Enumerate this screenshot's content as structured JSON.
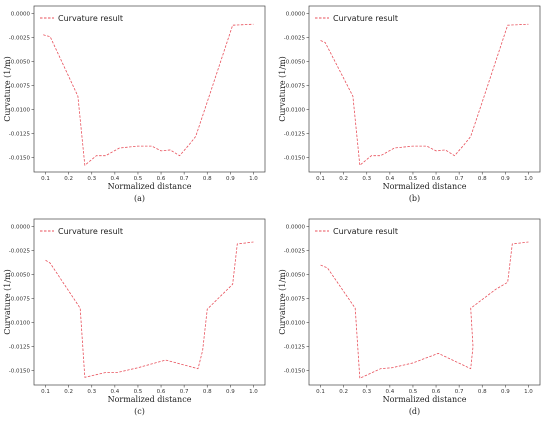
{
  "chart_data": [
    {
      "type": "line",
      "panel": "a",
      "caption": "(a)",
      "xlabel": "Normalized distance",
      "ylabel": "Curvature (1/m)",
      "xlim": [
        0.05,
        1.05
      ],
      "ylim": [
        -0.0165,
        0.0008
      ],
      "xticks": [
        "0.1",
        "0.2",
        "0.3",
        "0.4",
        "0.5",
        "0.6",
        "0.7",
        "0.8",
        "0.9",
        "1.0"
      ],
      "yticks": [
        "0.0000",
        "-0.0025",
        "-0.0050",
        "-0.0075",
        "-0.0100",
        "-0.0125",
        "-0.0150"
      ],
      "legend": "top-left",
      "series": [
        {
          "name": "Curvature result",
          "color": "#e8505b",
          "x": [
            0.09,
            0.12,
            0.24,
            0.27,
            0.32,
            0.36,
            0.42,
            0.5,
            0.56,
            0.6,
            0.64,
            0.68,
            0.72,
            0.75,
            0.8,
            0.91,
            1.0
          ],
          "y": [
            -0.0022,
            -0.0024,
            -0.0086,
            -0.0158,
            -0.0148,
            -0.0148,
            -0.014,
            -0.0138,
            -0.0138,
            -0.0143,
            -0.0142,
            -0.0148,
            -0.0137,
            -0.0128,
            -0.0092,
            -0.0012,
            -0.0011
          ]
        }
      ]
    },
    {
      "type": "line",
      "panel": "b",
      "caption": "(b)",
      "xlabel": "Normalized distance",
      "ylabel": "Curvature (1/m)",
      "xlim": [
        0.05,
        1.05
      ],
      "ylim": [
        -0.0165,
        0.0008
      ],
      "xticks": [
        "0.1",
        "0.2",
        "0.3",
        "0.4",
        "0.5",
        "0.6",
        "0.7",
        "0.8",
        "0.9",
        "1.0"
      ],
      "yticks": [
        "0.0000",
        "-0.0025",
        "-0.0050",
        "-0.0075",
        "-0.0100",
        "-0.0125",
        "-0.0150"
      ],
      "legend": "top-left",
      "series": [
        {
          "name": "Curvature result",
          "color": "#e8505b",
          "x": [
            0.1,
            0.12,
            0.24,
            0.27,
            0.32,
            0.36,
            0.42,
            0.5,
            0.56,
            0.6,
            0.64,
            0.68,
            0.72,
            0.75,
            0.8,
            0.91,
            1.0
          ],
          "y": [
            -0.0028,
            -0.003,
            -0.0086,
            -0.0158,
            -0.0148,
            -0.0148,
            -0.014,
            -0.0138,
            -0.0138,
            -0.0143,
            -0.0142,
            -0.0148,
            -0.0137,
            -0.0128,
            -0.0092,
            -0.0012,
            -0.0011
          ]
        }
      ]
    },
    {
      "type": "line",
      "panel": "c",
      "caption": "(c)",
      "xlabel": "Normalized distance",
      "ylabel": "Curvature (1/m)",
      "xlim": [
        0.05,
        1.05
      ],
      "ylim": [
        -0.0165,
        0.0008
      ],
      "xticks": [
        "0.1",
        "0.2",
        "0.3",
        "0.4",
        "0.5",
        "0.6",
        "0.7",
        "0.8",
        "0.9",
        "1.0"
      ],
      "yticks": [
        "0.0000",
        "-0.0025",
        "-0.0050",
        "-0.0075",
        "-0.0100",
        "-0.0125",
        "-0.0150"
      ],
      "legend": "top-left",
      "series": [
        {
          "name": "Curvature result",
          "color": "#e8505b",
          "x": [
            0.1,
            0.12,
            0.25,
            0.27,
            0.36,
            0.41,
            0.5,
            0.62,
            0.76,
            0.78,
            0.8,
            0.91,
            0.93,
            1.0
          ],
          "y": [
            -0.0035,
            -0.0038,
            -0.0085,
            -0.0157,
            -0.0152,
            -0.0152,
            -0.0147,
            -0.0139,
            -0.0148,
            -0.0129,
            -0.0086,
            -0.006,
            -0.0018,
            -0.0016
          ]
        }
      ]
    },
    {
      "type": "line",
      "panel": "d",
      "caption": "(d)",
      "xlabel": "Normalized distance",
      "ylabel": "Curvature (1/m)",
      "xlim": [
        0.05,
        1.05
      ],
      "ylim": [
        -0.0165,
        0.0008
      ],
      "xticks": [
        "0.1",
        "0.2",
        "0.3",
        "0.4",
        "0.5",
        "0.6",
        "0.7",
        "0.8",
        "0.9",
        "1.0"
      ],
      "yticks": [
        "0.0000",
        "-0.0025",
        "-0.0050",
        "-0.0075",
        "-0.0100",
        "-0.0125",
        "-0.0150"
      ],
      "legend": "top-left",
      "series": [
        {
          "name": "Curvature result",
          "color": "#e8505b",
          "x": [
            0.1,
            0.13,
            0.25,
            0.27,
            0.36,
            0.41,
            0.5,
            0.61,
            0.75,
            0.76,
            0.75,
            0.86,
            0.91,
            0.93,
            1.0
          ],
          "y": [
            -0.004,
            -0.0043,
            -0.0085,
            -0.0158,
            -0.0148,
            -0.0147,
            -0.0142,
            -0.0132,
            -0.0148,
            -0.0125,
            -0.0085,
            -0.0065,
            -0.0058,
            -0.0018,
            -0.0016
          ]
        }
      ]
    }
  ]
}
